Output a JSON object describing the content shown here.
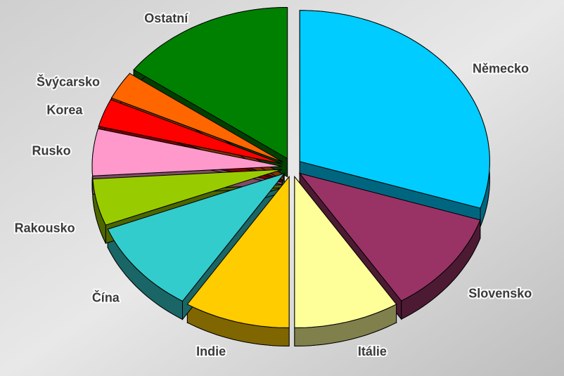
{
  "chart_data": {
    "type": "pie",
    "categories": [
      "Německo",
      "Slovensko",
      "Itálie",
      "Indie",
      "Čína",
      "Rakousko",
      "Rusko",
      "Korea",
      "Švýcarsko",
      "Ostatní"
    ],
    "values": [
      30,
      11,
      9,
      9,
      10,
      5,
      5,
      3,
      3,
      15
    ],
    "colors": [
      "#00ccff",
      "#993366",
      "#ffff99",
      "#ffcc00",
      "#33cccc",
      "#99cc00",
      "#ff99cc",
      "#ff0000",
      "#ff6600",
      "#008000"
    ]
  }
}
